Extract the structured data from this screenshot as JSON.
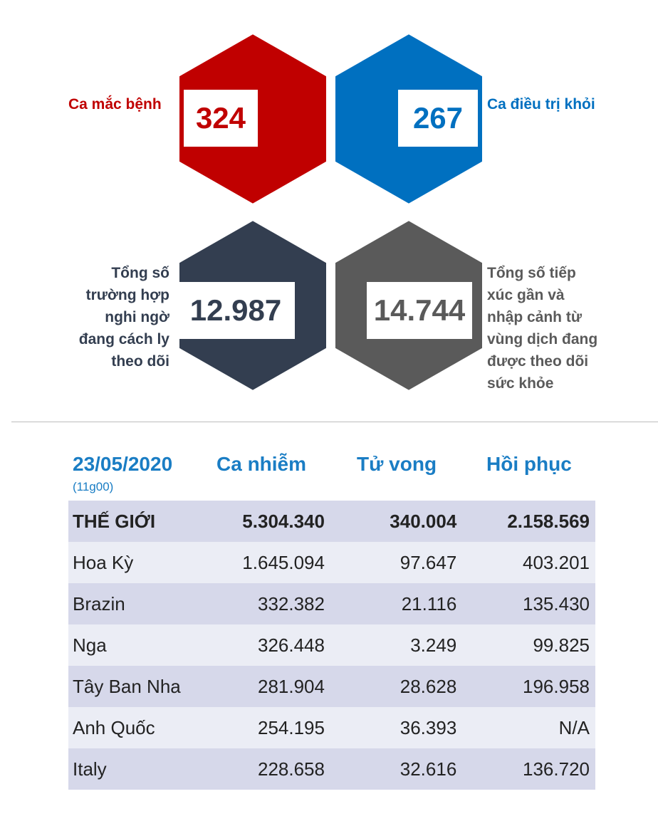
{
  "stats": [
    {
      "value": "324",
      "label": "Ca mắc bệnh",
      "color": "#c00000"
    },
    {
      "value": "267",
      "label": "Ca điều trị khỏi",
      "color": "#0070c0"
    },
    {
      "value": "12.987",
      "label_lines": [
        "Tổng số",
        "trường hợp",
        "nghi ngờ",
        "đang cách ly",
        "theo dõi"
      ],
      "color": "#333e50"
    },
    {
      "value": "14.744",
      "label_lines": [
        "Tổng số tiếp",
        "xúc gần và",
        "nhập cảnh từ",
        "vùng dịch đang",
        "được theo dõi",
        "sức khỏe"
      ],
      "color": "#5a5a5a"
    }
  ],
  "table": {
    "date": "23/05/2020",
    "time": "(11g00)",
    "headers": [
      "Ca nhiễm",
      "Tử vong",
      "Hồi phục"
    ],
    "rows": [
      [
        "THẾ GIỚI",
        "5.304.340",
        "340.004",
        "2.158.569"
      ],
      [
        "Hoa Kỳ",
        "1.645.094",
        "97.647",
        "403.201"
      ],
      [
        "Brazin",
        "332.382",
        "21.116",
        "135.430"
      ],
      [
        "Nga",
        "326.448",
        "3.249",
        "99.825"
      ],
      [
        "Tây Ban Nha",
        "281.904",
        "28.628",
        "196.958"
      ],
      [
        "Anh Quốc",
        "254.195",
        "36.393",
        "N/A"
      ],
      [
        "Italy",
        "228.658",
        "32.616",
        "136.720"
      ]
    ]
  },
  "colors": {
    "accent": "#1a7dc4",
    "row_dark": "#d6d8ea",
    "row_light": "#ebedf5"
  }
}
